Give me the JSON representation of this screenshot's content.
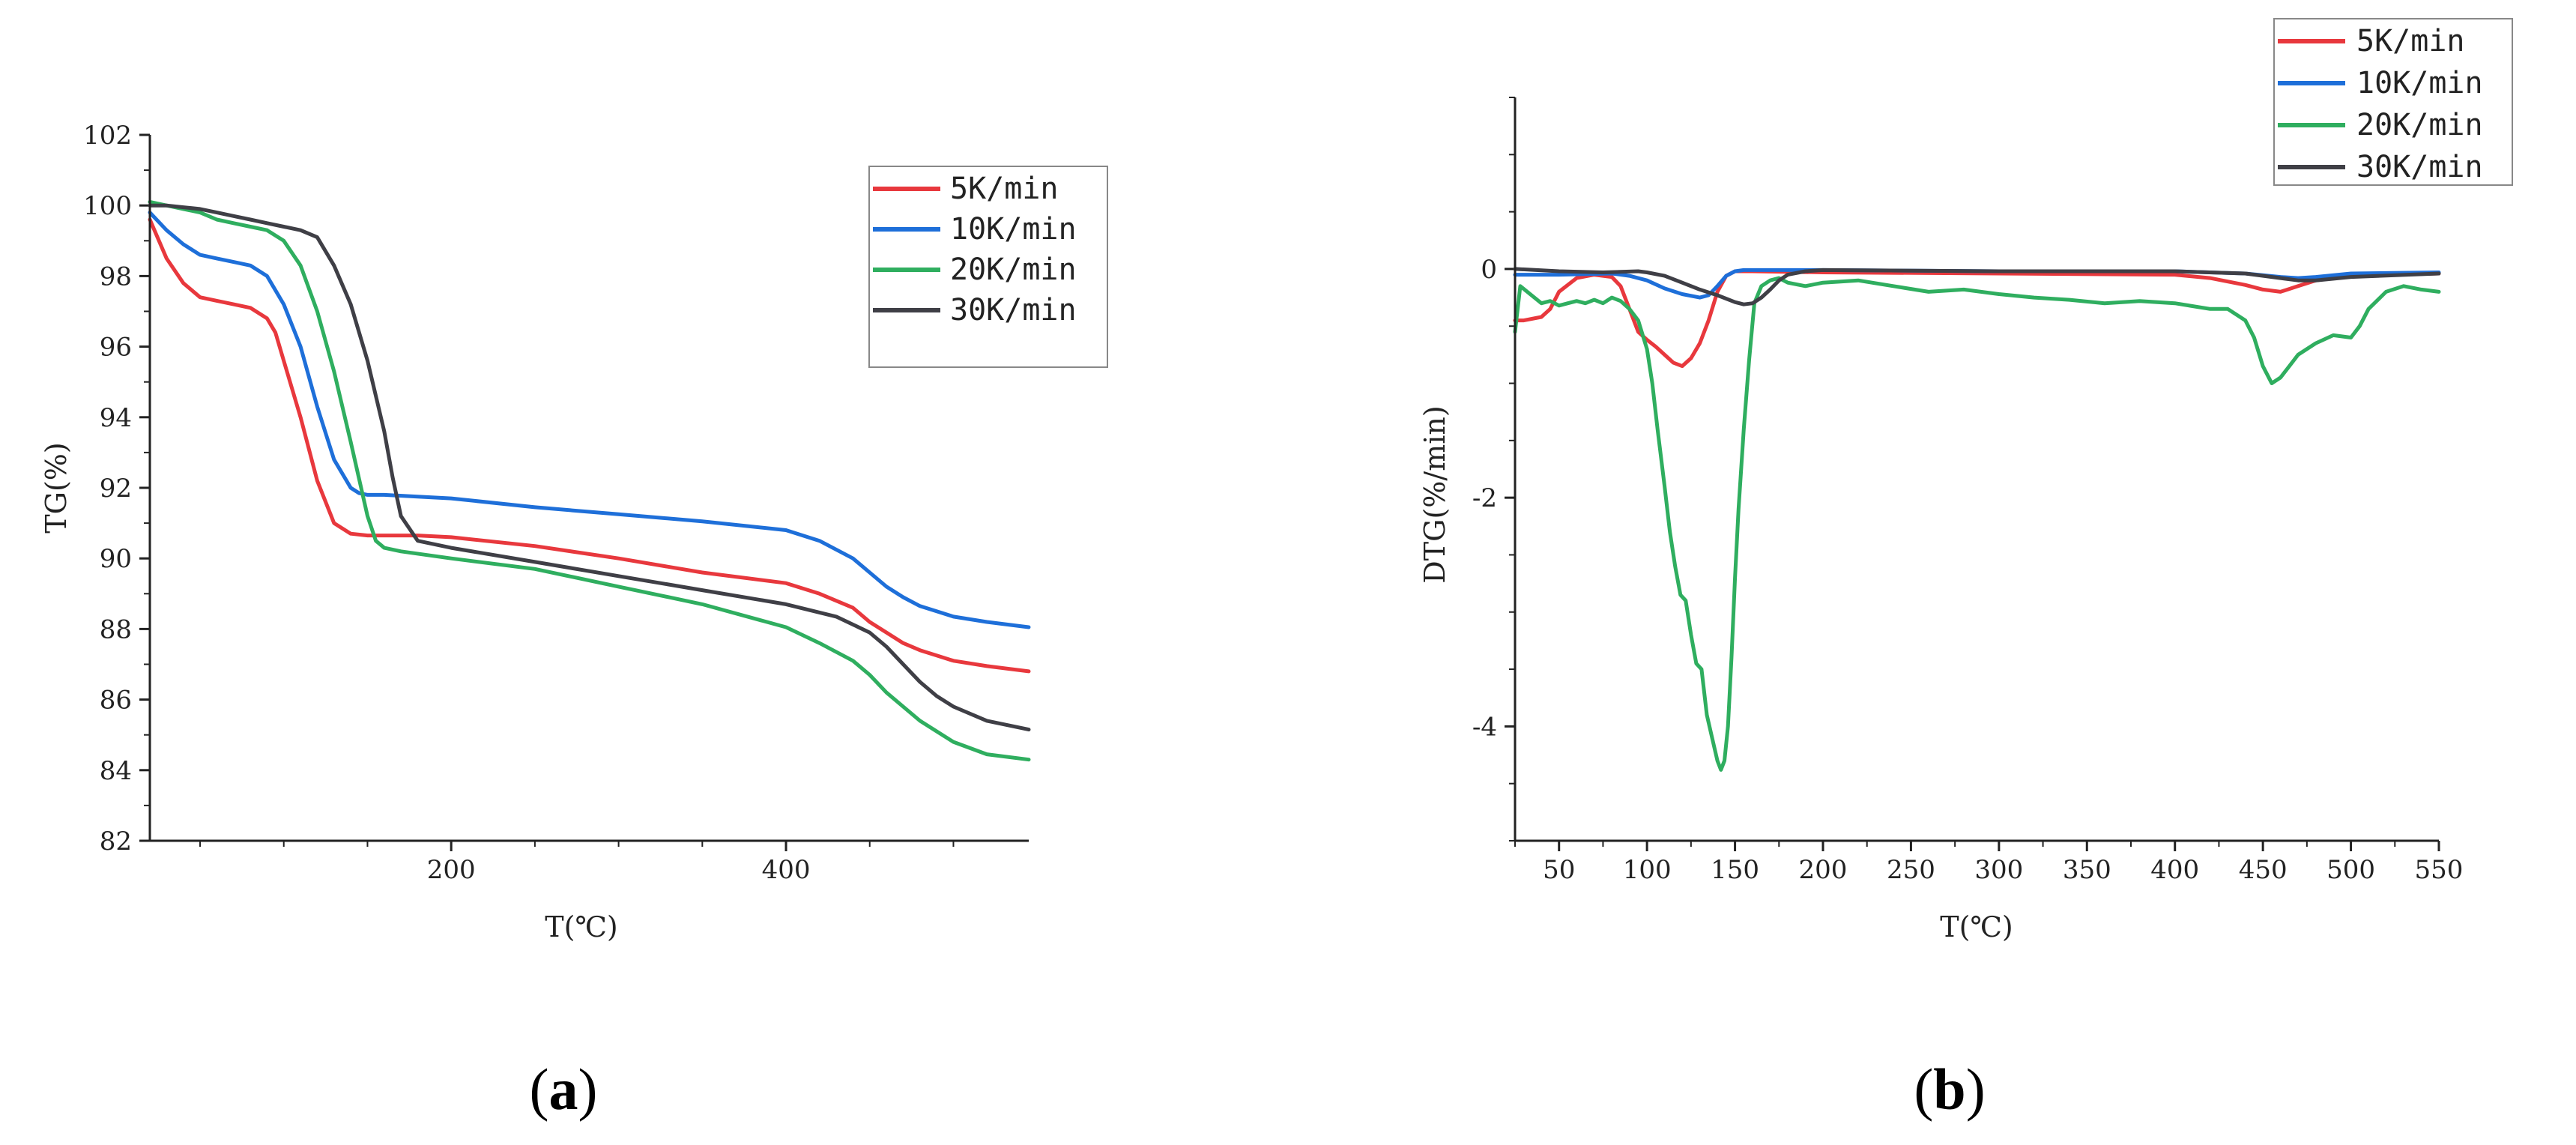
{
  "colors": {
    "5K/min": "#e8383d",
    "10K/min": "#1e6fd9",
    "20K/min": "#2fae5f",
    "30K/min": "#3f3f46"
  },
  "panel_labels": {
    "a": "a",
    "b": "b"
  },
  "chart_data": [
    {
      "id": "a",
      "type": "line",
      "xlabel": "T(℃)",
      "ylabel": "TG(%)",
      "xlim": [
        20,
        545
      ],
      "ylim": [
        82,
        102
      ],
      "xticks": [
        200,
        400
      ],
      "yticks": [
        82,
        84,
        86,
        88,
        90,
        92,
        94,
        96,
        98,
        100,
        102
      ],
      "legend_position": "top-right",
      "series": [
        {
          "name": "5K/min",
          "color": "#e8383d",
          "x": [
            20,
            30,
            40,
            50,
            60,
            70,
            80,
            90,
            95,
            100,
            110,
            120,
            130,
            140,
            150,
            160,
            180,
            200,
            250,
            300,
            350,
            400,
            420,
            440,
            450,
            460,
            470,
            480,
            490,
            500,
            520,
            545
          ],
          "y": [
            99.6,
            98.5,
            97.8,
            97.4,
            97.3,
            97.2,
            97.1,
            96.8,
            96.4,
            95.6,
            94.0,
            92.2,
            91.0,
            90.7,
            90.65,
            90.65,
            90.65,
            90.6,
            90.35,
            90.0,
            89.6,
            89.3,
            89.0,
            88.6,
            88.2,
            87.9,
            87.6,
            87.4,
            87.25,
            87.1,
            86.95,
            86.8
          ]
        },
        {
          "name": "10K/min",
          "color": "#1e6fd9",
          "x": [
            20,
            30,
            40,
            50,
            60,
            70,
            80,
            90,
            100,
            110,
            120,
            130,
            140,
            145,
            150,
            160,
            180,
            200,
            250,
            300,
            350,
            400,
            420,
            440,
            450,
            460,
            470,
            480,
            490,
            500,
            520,
            545
          ],
          "y": [
            99.8,
            99.3,
            98.9,
            98.6,
            98.5,
            98.4,
            98.3,
            98.0,
            97.2,
            96.0,
            94.3,
            92.8,
            92.0,
            91.85,
            91.8,
            91.8,
            91.75,
            91.7,
            91.45,
            91.25,
            91.05,
            90.8,
            90.5,
            90.0,
            89.6,
            89.2,
            88.9,
            88.65,
            88.5,
            88.35,
            88.2,
            88.05
          ]
        },
        {
          "name": "20K/min",
          "color": "#2fae5f",
          "x": [
            20,
            30,
            40,
            50,
            60,
            70,
            80,
            90,
            100,
            110,
            120,
            130,
            140,
            150,
            155,
            160,
            170,
            200,
            250,
            300,
            350,
            400,
            420,
            440,
            450,
            460,
            470,
            480,
            490,
            500,
            520,
            545
          ],
          "y": [
            100.1,
            100.0,
            99.9,
            99.8,
            99.6,
            99.5,
            99.4,
            99.3,
            99.0,
            98.3,
            97.0,
            95.3,
            93.3,
            91.2,
            90.5,
            90.3,
            90.2,
            90.0,
            89.7,
            89.2,
            88.7,
            88.05,
            87.6,
            87.1,
            86.7,
            86.2,
            85.8,
            85.4,
            85.1,
            84.8,
            84.45,
            84.3
          ]
        },
        {
          "name": "30K/min",
          "color": "#3f3f46",
          "x": [
            20,
            30,
            40,
            50,
            60,
            70,
            80,
            90,
            100,
            110,
            120,
            130,
            140,
            150,
            160,
            165,
            170,
            180,
            200,
            250,
            300,
            350,
            400,
            430,
            450,
            460,
            470,
            480,
            490,
            500,
            520,
            545
          ],
          "y": [
            100.0,
            100.0,
            99.95,
            99.9,
            99.8,
            99.7,
            99.6,
            99.5,
            99.4,
            99.3,
            99.1,
            98.3,
            97.2,
            95.6,
            93.6,
            92.3,
            91.2,
            90.5,
            90.3,
            89.9,
            89.5,
            89.1,
            88.7,
            88.35,
            87.9,
            87.5,
            87.0,
            86.5,
            86.1,
            85.8,
            85.4,
            85.15
          ]
        }
      ]
    },
    {
      "id": "b",
      "type": "line",
      "xlabel": "T(℃)",
      "ylabel": "DTG(%/min)",
      "xlim": [
        25,
        550
      ],
      "ylim": [
        -5,
        1.5
      ],
      "xticks": [
        50,
        100,
        150,
        200,
        250,
        300,
        350,
        400,
        450,
        500,
        550
      ],
      "yticks": [
        -4,
        -2,
        0
      ],
      "legend_position": "top-right",
      "series": [
        {
          "name": "5K/min",
          "color": "#e8383d",
          "x": [
            25,
            30,
            40,
            45,
            50,
            60,
            70,
            80,
            85,
            90,
            95,
            100,
            105,
            110,
            115,
            120,
            125,
            130,
            135,
            140,
            145,
            150,
            160,
            200,
            300,
            400,
            420,
            440,
            450,
            460,
            470,
            480,
            500,
            550
          ],
          "y": [
            -0.45,
            -0.45,
            -0.42,
            -0.35,
            -0.2,
            -0.08,
            -0.05,
            -0.07,
            -0.15,
            -0.35,
            -0.55,
            -0.62,
            -0.68,
            -0.75,
            -0.82,
            -0.85,
            -0.78,
            -0.65,
            -0.45,
            -0.2,
            -0.06,
            -0.02,
            -0.02,
            -0.03,
            -0.04,
            -0.05,
            -0.08,
            -0.14,
            -0.18,
            -0.2,
            -0.15,
            -0.1,
            -0.06,
            -0.04
          ]
        },
        {
          "name": "10K/min",
          "color": "#1e6fd9",
          "x": [
            25,
            50,
            80,
            90,
            100,
            110,
            120,
            130,
            135,
            140,
            145,
            150,
            155,
            160,
            200,
            300,
            400,
            440,
            460,
            470,
            480,
            500,
            550
          ],
          "y": [
            -0.05,
            -0.05,
            -0.04,
            -0.06,
            -0.1,
            -0.17,
            -0.22,
            -0.25,
            -0.23,
            -0.15,
            -0.06,
            -0.02,
            -0.01,
            -0.01,
            -0.01,
            -0.02,
            -0.02,
            -0.04,
            -0.07,
            -0.08,
            -0.07,
            -0.04,
            -0.03
          ]
        },
        {
          "name": "20K/min",
          "color": "#2fae5f",
          "x": [
            25,
            28,
            32,
            36,
            40,
            45,
            50,
            55,
            60,
            65,
            70,
            75,
            80,
            85,
            90,
            95,
            100,
            103,
            106,
            110,
            113,
            116,
            119,
            122,
            125,
            128,
            131,
            134,
            137,
            140,
            142,
            144,
            146,
            148,
            150,
            152,
            155,
            158,
            161,
            165,
            170,
            175,
            180,
            190,
            200,
            220,
            240,
            260,
            280,
            300,
            320,
            340,
            360,
            380,
            400,
            420,
            430,
            440,
            445,
            450,
            455,
            460,
            465,
            470,
            480,
            490,
            500,
            505,
            510,
            520,
            530,
            540,
            550
          ],
          "y": [
            -0.55,
            -0.15,
            -0.2,
            -0.25,
            -0.3,
            -0.28,
            -0.32,
            -0.3,
            -0.28,
            -0.3,
            -0.27,
            -0.3,
            -0.25,
            -0.28,
            -0.35,
            -0.45,
            -0.7,
            -1.0,
            -1.4,
            -1.9,
            -2.3,
            -2.6,
            -2.85,
            -2.9,
            -3.2,
            -3.45,
            -3.5,
            -3.9,
            -4.1,
            -4.3,
            -4.38,
            -4.3,
            -4.0,
            -3.4,
            -2.7,
            -2.1,
            -1.4,
            -0.8,
            -0.3,
            -0.15,
            -0.1,
            -0.08,
            -0.12,
            -0.15,
            -0.12,
            -0.1,
            -0.15,
            -0.2,
            -0.18,
            -0.22,
            -0.25,
            -0.27,
            -0.3,
            -0.28,
            -0.3,
            -0.35,
            -0.35,
            -0.45,
            -0.6,
            -0.85,
            -1.0,
            -0.95,
            -0.85,
            -0.75,
            -0.65,
            -0.58,
            -0.6,
            -0.5,
            -0.35,
            -0.2,
            -0.15,
            -0.18,
            -0.2
          ]
        },
        {
          "name": "30K/min",
          "color": "#3f3f46",
          "x": [
            25,
            50,
            75,
            95,
            100,
            110,
            120,
            130,
            140,
            150,
            155,
            160,
            165,
            170,
            175,
            180,
            190,
            200,
            300,
            400,
            440,
            460,
            470,
            480,
            500,
            550
          ],
          "y": [
            0.0,
            -0.02,
            -0.03,
            -0.02,
            -0.03,
            -0.06,
            -0.12,
            -0.18,
            -0.23,
            -0.29,
            -0.31,
            -0.3,
            -0.25,
            -0.18,
            -0.1,
            -0.05,
            -0.02,
            -0.01,
            -0.02,
            -0.02,
            -0.04,
            -0.08,
            -0.1,
            -0.1,
            -0.07,
            -0.04
          ]
        }
      ]
    }
  ]
}
